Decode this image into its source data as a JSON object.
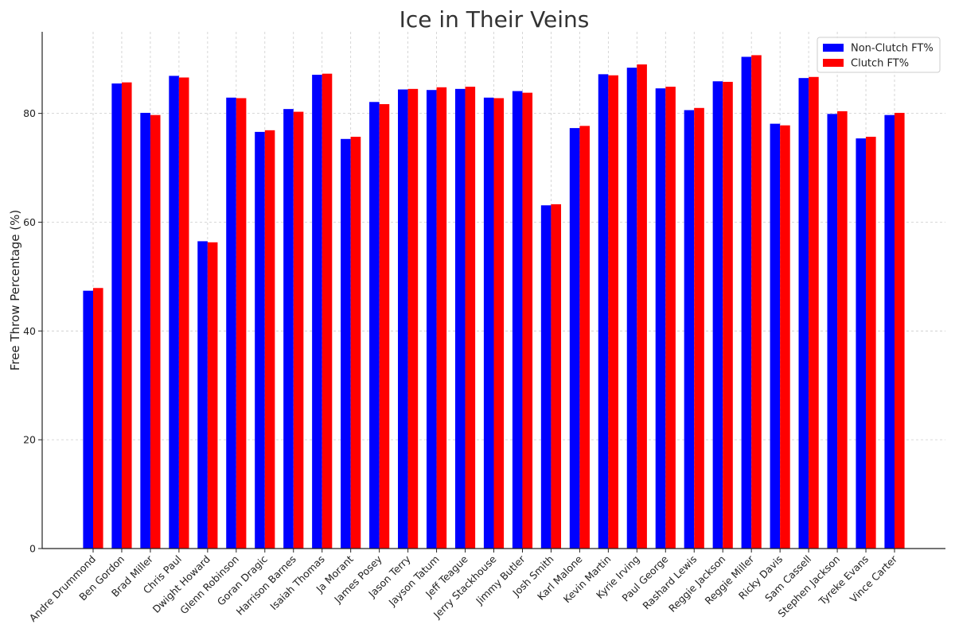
{
  "chart_data": {
    "type": "bar",
    "title": "Ice in Their Veins",
    "xlabel": "",
    "ylabel": "Free Throw Percentage (%)",
    "ylim": [
      0,
      95
    ],
    "yticks": [
      0,
      20,
      40,
      60,
      80
    ],
    "grid": true,
    "legend_position": "top-right",
    "categories": [
      "Andre Drummond",
      "Ben Gordon",
      "Brad Miller",
      "Chris Paul",
      "Dwight Howard",
      "Glenn Robinson",
      "Goran Dragic",
      "Harrison Barnes",
      "Isaiah Thomas",
      "Ja Morant",
      "James Posey",
      "Jason Terry",
      "Jayson Tatum",
      "Jeff Teague",
      "Jerry Stackhouse",
      "Jimmy Butler",
      "Josh Smith",
      "Karl Malone",
      "Kevin Martin",
      "Kyrie Irving",
      "Paul George",
      "Rashard Lewis",
      "Reggie Jackson",
      "Reggie Miller",
      "Ricky Davis",
      "Sam Cassell",
      "Stephen Jackson",
      "Tyreke Evans",
      "Vince Carter"
    ],
    "series": [
      {
        "name": "Non-Clutch FT%",
        "color": "#0000ff",
        "values": [
          47.4,
          85.5,
          80.1,
          86.9,
          56.5,
          82.9,
          76.6,
          80.8,
          87.1,
          75.3,
          82.1,
          84.4,
          84.3,
          84.5,
          82.9,
          84.1,
          63.1,
          77.3,
          87.2,
          88.4,
          84.6,
          80.6,
          85.9,
          90.4,
          78.1,
          86.5,
          79.9,
          75.4,
          79.7
        ]
      },
      {
        "name": "Clutch FT%",
        "color": "#ff0000",
        "values": [
          47.9,
          85.7,
          79.7,
          86.6,
          56.3,
          82.8,
          76.9,
          80.3,
          87.3,
          75.7,
          81.7,
          84.5,
          84.8,
          84.9,
          82.8,
          83.8,
          63.3,
          77.7,
          87.0,
          89.0,
          84.9,
          81.0,
          85.8,
          90.7,
          77.8,
          86.7,
          80.4,
          75.7,
          80.1
        ]
      }
    ]
  }
}
